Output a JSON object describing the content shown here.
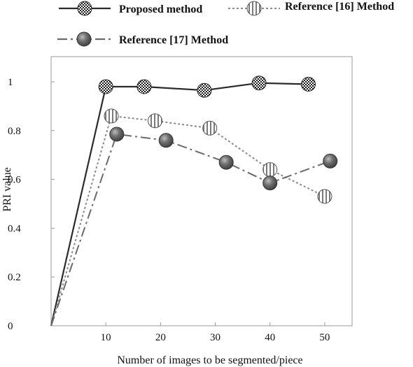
{
  "chart_data": {
    "type": "line",
    "xlabel": "Number of images to be segmented/piece",
    "ylabel": "PRI value",
    "xlim": [
      0,
      55
    ],
    "ylim": [
      0,
      1.1
    ],
    "x_ticks": [
      10,
      20,
      30,
      40,
      50
    ],
    "y_ticks": [
      0,
      0.2,
      0.4,
      0.6,
      0.8,
      1
    ],
    "y_tick_labels": [
      "0",
      "0.2",
      "0.4",
      "0.6",
      "0.8",
      "1"
    ],
    "grid": false,
    "legend_position": "top",
    "series": [
      {
        "name": "Proposed method",
        "line_style": "solid",
        "line_color": "#2b2b2b",
        "marker": "checker-circle",
        "x": [
          0,
          10,
          17,
          28,
          38,
          47
        ],
        "y": [
          0,
          0.98,
          0.98,
          0.965,
          0.995,
          0.99
        ]
      },
      {
        "name": "Reference [16] Method",
        "line_style": "dotted",
        "line_color": "#8a8a8a",
        "marker": "striped-circle",
        "x": [
          0,
          11,
          19,
          29,
          40,
          50
        ],
        "y": [
          0,
          0.86,
          0.84,
          0.81,
          0.64,
          0.53
        ]
      },
      {
        "name": "Reference [17] Method",
        "line_style": "dash-dot",
        "line_color": "#6a6a6a",
        "marker": "filled-circle",
        "x": [
          0,
          12,
          21,
          32,
          40,
          51
        ],
        "y": [
          0,
          0.785,
          0.76,
          0.67,
          0.585,
          0.675
        ]
      }
    ]
  }
}
